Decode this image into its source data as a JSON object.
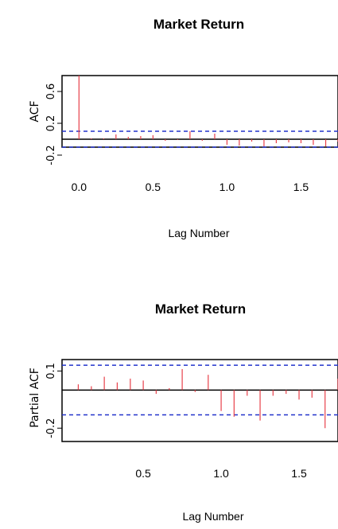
{
  "chart_data": [
    {
      "type": "bar",
      "title": "Market Return",
      "xlabel": "Lag Number",
      "ylabel": "ACF",
      "xlim": [
        -0.05,
        1.75
      ],
      "ylim": [
        -0.1,
        0.8
      ],
      "yticks": [
        -0.2,
        0.2,
        0.6
      ],
      "xticks": [
        0.0,
        0.5,
        1.0,
        1.5
      ],
      "ytick_labels": [
        "-0.2",
        "0.2",
        "0.6"
      ],
      "xtick_labels": [
        "0.0",
        "0.5",
        "1.0",
        "1.5"
      ],
      "conf_limit": 0.1,
      "lags": [
        0.0,
        0.083,
        0.167,
        0.25,
        0.333,
        0.417,
        0.5,
        0.583,
        0.667,
        0.75,
        0.833,
        0.917,
        1.0,
        1.083,
        1.167,
        1.25,
        1.333,
        1.417,
        1.5,
        1.583,
        1.667,
        1.75
      ],
      "values": [
        1.0,
        0.01,
        0.01,
        0.06,
        0.03,
        0.04,
        0.05,
        -0.02,
        -0.01,
        0.1,
        -0.02,
        0.07,
        -0.07,
        -0.08,
        -0.03,
        -0.09,
        -0.05,
        -0.04,
        -0.05,
        -0.07,
        -0.09,
        -0.03
      ],
      "bar_color": "#e8404a",
      "ci_color": "#2233cc"
    },
    {
      "type": "bar",
      "title": "Market Return",
      "xlabel": "Lag Number",
      "ylabel": "Partial ACF",
      "xlim": [
        0.04,
        1.75
      ],
      "ylim": [
        -0.27,
        0.16
      ],
      "yticks": [
        -0.2,
        0.1
      ],
      "xticks": [
        0.5,
        1.0,
        1.5
      ],
      "ytick_labels": [
        "-0.2",
        "0.1"
      ],
      "xtick_labels": [
        "0.5",
        "1.0",
        "1.5"
      ],
      "conf_limit": 0.13,
      "lags": [
        0.083,
        0.167,
        0.25,
        0.333,
        0.417,
        0.5,
        0.583,
        0.667,
        0.75,
        0.833,
        0.917,
        1.0,
        1.083,
        1.167,
        1.25,
        1.333,
        1.417,
        1.5,
        1.583,
        1.667,
        1.75
      ],
      "values": [
        0.03,
        0.02,
        0.07,
        0.04,
        0.06,
        0.05,
        -0.02,
        0.01,
        0.11,
        -0.01,
        0.08,
        -0.11,
        -0.14,
        -0.03,
        -0.16,
        -0.03,
        -0.02,
        -0.05,
        -0.04,
        -0.2,
        0.06
      ],
      "bar_color": "#e8404a",
      "ci_color": "#2233cc"
    }
  ]
}
